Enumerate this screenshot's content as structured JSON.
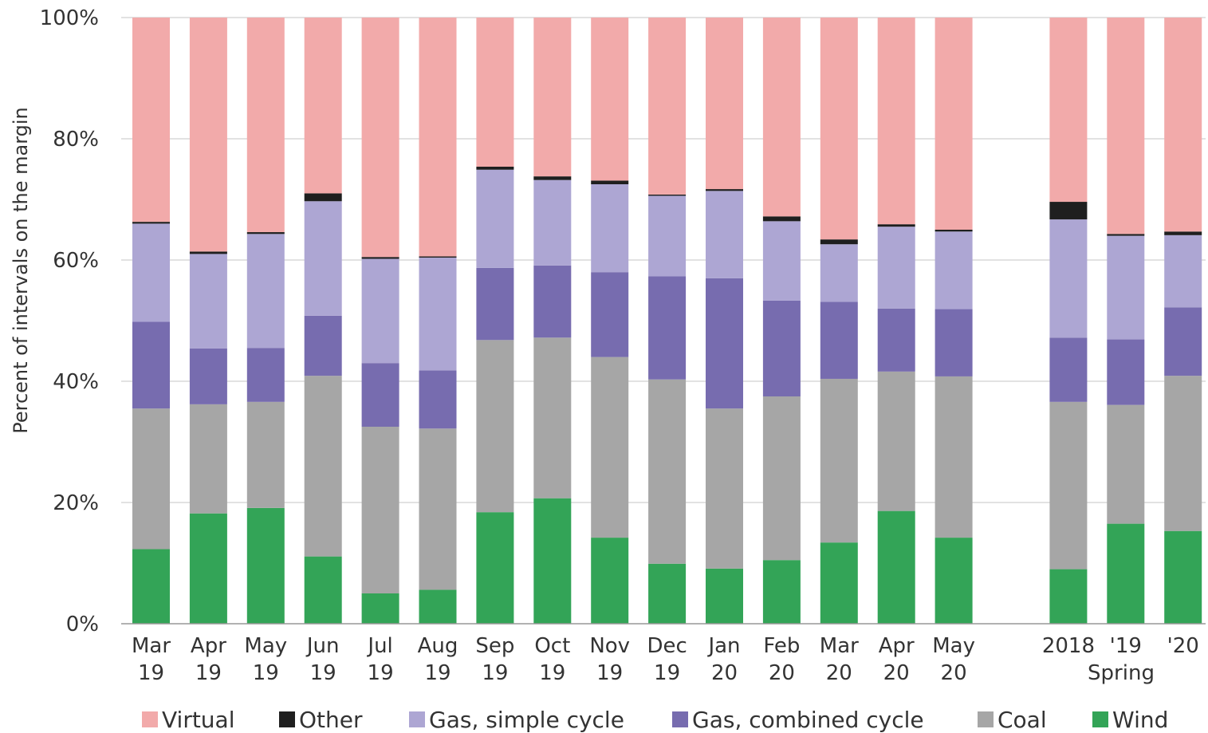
{
  "chart_data": {
    "type": "bar",
    "stacked": true,
    "ylabel": "Percent of intervals on the margin",
    "ylim": [
      0,
      100
    ],
    "yticks": [
      "0%",
      "20%",
      "40%",
      "60%",
      "80%",
      "100%"
    ],
    "grid": true,
    "legend_placement": "bottom",
    "categories": [
      {
        "line1": "Mar",
        "line2": "19"
      },
      {
        "line1": "Apr",
        "line2": "19"
      },
      {
        "line1": "May",
        "line2": "19"
      },
      {
        "line1": "Jun",
        "line2": "19"
      },
      {
        "line1": "Jul",
        "line2": "19"
      },
      {
        "line1": "Aug",
        "line2": "19"
      },
      {
        "line1": "Sep",
        "line2": "19"
      },
      {
        "line1": "Oct",
        "line2": "19"
      },
      {
        "line1": "Nov",
        "line2": "19"
      },
      {
        "line1": "Dec",
        "line2": "19"
      },
      {
        "line1": "Jan",
        "line2": "20"
      },
      {
        "line1": "Feb",
        "line2": "20"
      },
      {
        "line1": "Mar",
        "line2": "20"
      },
      {
        "line1": "Apr",
        "line2": "20"
      },
      {
        "line1": "May",
        "line2": "20"
      },
      {
        "line1": "2018",
        "line2": ""
      },
      {
        "line1": "'19",
        "line2": ""
      },
      {
        "line1": "'20",
        "line2": ""
      }
    ],
    "group_label": "Spring",
    "series": [
      {
        "name": "Wind",
        "color": "#33a457",
        "values": [
          12.3,
          18.2,
          19.1,
          11.1,
          5.0,
          5.6,
          18.4,
          20.7,
          14.2,
          9.9,
          9.1,
          10.5,
          13.4,
          18.6,
          14.2,
          9.0,
          16.5,
          15.3
        ]
      },
      {
        "name": "Coal",
        "color": "#a6a6a6",
        "values": [
          23.2,
          18.0,
          17.5,
          29.8,
          27.5,
          26.6,
          28.4,
          26.5,
          29.8,
          30.4,
          26.4,
          27.0,
          27.0,
          23.0,
          26.6,
          27.6,
          19.6,
          25.6
        ]
      },
      {
        "name": "Gas, combined cycle",
        "color": "#776caf",
        "values": [
          14.3,
          9.2,
          8.9,
          9.9,
          10.5,
          9.6,
          11.9,
          11.9,
          14.0,
          17.0,
          21.5,
          15.8,
          12.7,
          10.4,
          11.1,
          10.6,
          10.8,
          11.3
        ]
      },
      {
        "name": "Gas, simple cycle",
        "color": "#ada6d3",
        "values": [
          16.2,
          15.6,
          18.8,
          18.9,
          17.2,
          18.6,
          16.2,
          14.1,
          14.5,
          13.3,
          14.4,
          13.1,
          9.5,
          13.5,
          12.8,
          19.5,
          17.1,
          11.9
        ]
      },
      {
        "name": "Other",
        "color": "#1f1f1f",
        "values": [
          0.3,
          0.4,
          0.3,
          1.3,
          0.3,
          0.2,
          0.5,
          0.6,
          0.6,
          0.2,
          0.3,
          0.8,
          0.8,
          0.4,
          0.3,
          2.9,
          0.3,
          0.6
        ]
      },
      {
        "name": "Virtual",
        "color": "#f2aaaa",
        "values": [
          33.7,
          38.6,
          35.4,
          29.0,
          39.5,
          39.4,
          24.6,
          26.2,
          26.9,
          29.2,
          28.3,
          32.8,
          36.6,
          34.1,
          35.0,
          30.4,
          35.7,
          35.3
        ]
      }
    ],
    "legend": [
      "Virtual",
      "Other",
      "Gas, simple cycle",
      "Gas, combined cycle",
      "Coal",
      "Wind"
    ]
  }
}
